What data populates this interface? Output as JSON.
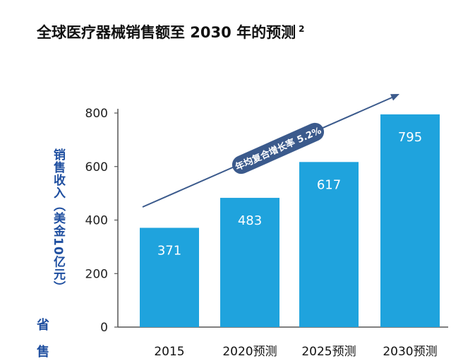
{
  "page": {
    "title": "全球医疗器械销售额至 2030 年的预测",
    "title_note": "2",
    "side_marks": [
      "省",
      "售"
    ]
  },
  "chart_data": {
    "type": "bar",
    "title": "全球医疗器械销售额至 2030 年的预测",
    "categories": [
      "2015",
      "2020预测",
      "2025预测",
      "2030预测"
    ],
    "values": [
      371,
      483,
      617,
      795
    ],
    "ylabel": "销售收入（美金10亿元）",
    "xlabel": "",
    "ylim": [
      0,
      800
    ],
    "yticks": [
      0,
      200,
      400,
      600,
      800
    ],
    "annotation": "年均复合增长率 5.2%",
    "colors": {
      "bar": "#1fa3dd",
      "arrow": "#3b5a8c",
      "axis": "#555555",
      "label": "#ffffff"
    }
  }
}
